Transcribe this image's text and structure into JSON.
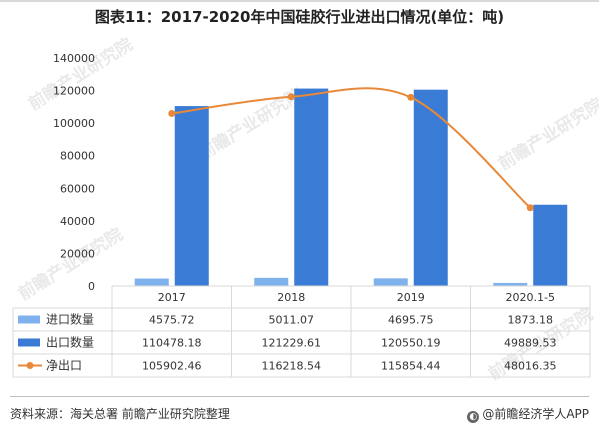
{
  "title": "图表11：2017-2020年中国硅胶行业进出口情况(单位：吨)",
  "footer": {
    "source": "资料来源：海关总署 前瞻产业研究院整理",
    "brand": "@前瞻经济学人APP"
  },
  "watermarks": [
    "前瞻产业研究院",
    "前瞻产业研究院",
    "前瞻产业研究院",
    "前瞻产业研究院",
    "前瞻产业研究院"
  ],
  "colors": {
    "import": "#7fb1ec",
    "export": "#3a7bd5",
    "net": "#e8893a",
    "grid": "#d9d9d9"
  },
  "chart_data": {
    "type": "bar",
    "categories": [
      "2017",
      "2018",
      "2019",
      "2020.1-5"
    ],
    "ylim": [
      0,
      140000
    ],
    "yticks": [
      "0",
      "20000",
      "40000",
      "60000",
      "80000",
      "100000",
      "120000",
      "140000"
    ],
    "grid": false,
    "legend_position": "table-left",
    "series": [
      {
        "name": "进口数量",
        "type": "bar",
        "values": [
          4575.72,
          5011.07,
          4695.75,
          1873.18
        ],
        "labels": [
          "4575.72",
          "5011.07",
          "4695.75",
          "1873.18"
        ]
      },
      {
        "name": "出口数量",
        "type": "bar",
        "values": [
          110478.18,
          121229.61,
          120550.19,
          49889.53
        ],
        "labels": [
          "110478.18",
          "121229.61",
          "120550.19",
          "49889.53"
        ]
      },
      {
        "name": "净出口",
        "type": "line",
        "values": [
          105902.46,
          116218.54,
          115854.44,
          48016.35
        ],
        "labels": [
          "105902.46",
          "116218.54",
          "115854.44",
          "48016.35"
        ]
      }
    ]
  }
}
